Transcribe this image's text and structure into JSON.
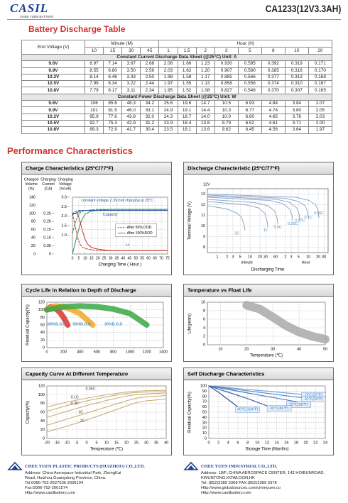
{
  "header": {
    "logo": "CASIL",
    "logo_sub": "CHEE YUEN BATTERY",
    "model": "CA1233(12V3.3AH)"
  },
  "table": {
    "title": "Battery Discharge Table",
    "corner": "End Voltage (V)",
    "group_minute": "Minute (M)",
    "group_hour": "Hour (H)",
    "columns": [
      "10",
      "15",
      "30",
      "45",
      "1",
      "1.5",
      "2",
      "3",
      "5",
      "8",
      "10",
      "20"
    ],
    "sections": [
      {
        "heading": "Constant Current Discharge Data Sheet   (@25°C)   Unit: A",
        "rows": [
          [
            "9.6V",
            "8.97",
            "7.14",
            "3.67",
            "2.68",
            "2.08",
            "1.66",
            "1.23",
            "0.930",
            "0.595",
            "0.392",
            "0.319",
            "0.171"
          ],
          [
            "9.9V",
            "8.55",
            "6.80",
            "3.50",
            "2.59",
            "2.03",
            "1.62",
            "1.20",
            "0.907",
            "0.580",
            "0.385",
            "0.316",
            "0.170"
          ],
          [
            "10.2V",
            "8.14",
            "6.48",
            "3.33",
            "2.50",
            "1.98",
            "1.58",
            "1.17",
            "0.885",
            "0.566",
            "0.377",
            "0.313",
            "0.168"
          ],
          [
            "10.5V",
            "7.99",
            "6.34",
            "3.22",
            "2.44",
            "1.97",
            "1.55",
            "1.13",
            "0.858",
            "0.556",
            "0.374",
            "0.310",
            "0.167"
          ],
          [
            "10.8V",
            "7.79",
            "6.17",
            "3.11",
            "2.34",
            "1.95",
            "1.52",
            "1.08",
            "0.827",
            "0.546",
            "0.370",
            "0.307",
            "0.165"
          ]
        ]
      },
      {
        "heading": "Constant Power Discharge Data Sheet   (@25°C)   Unit: W",
        "rows": [
          [
            "9.6V",
            "106",
            "85.6",
            "48.3",
            "34.2",
            "25.6",
            "19.6",
            "14.7",
            "10.5",
            "6.93",
            "4.84",
            "3.84",
            "2.07"
          ],
          [
            "9.9V",
            "101",
            "81.5",
            "46.0",
            "33.1",
            "24.9",
            "19.1",
            "14.4",
            "10.3",
            "6.77",
            "4.74",
            "3.80",
            "2.05"
          ],
          [
            "10.2V",
            "95.9",
            "77.6",
            "43.8",
            "32.0",
            "24.3",
            "18.7",
            "14.0",
            "10.0",
            "6.60",
            "4.65",
            "3.76",
            "2.03"
          ],
          [
            "10.5V",
            "92.7",
            "75.3",
            "42.9",
            "31.2",
            "23.9",
            "18.4",
            "13.8",
            "9.79",
            "6.52",
            "4.61",
            "3.71",
            "2.00"
          ],
          [
            "10.8V",
            "89.3",
            "72.9",
            "41.7",
            "30.4",
            "23.5",
            "18.1",
            "13.6",
            "9.62",
            "6.45",
            "4.56",
            "3.64",
            "1.97"
          ]
        ]
      }
    ]
  },
  "performance_title": "Performance Characteristics",
  "chart_data": [
    {
      "type": "line",
      "title": "Charge Characteristics (25ºC/77ºF)",
      "ylabel": [
        "Charged",
        "Volume",
        "(%)"
      ],
      "y2label": [
        "Charging",
        "Current",
        "(CA)"
      ],
      "y3label": [
        "Charging",
        "Voltage",
        "(V/cell)"
      ],
      "xlabel": "Charging Time ( Hour )",
      "xlim": [
        0,
        75
      ],
      "xticks": [
        0,
        5,
        10,
        15,
        20,
        25,
        30,
        35,
        40,
        45,
        50,
        55,
        60,
        65,
        70,
        75
      ],
      "ylim": [
        0,
        140
      ],
      "yticks": [
        0,
        20,
        40,
        60,
        80,
        100,
        120,
        140
      ],
      "y2lim": [
        0,
        0.35
      ],
      "y2ticks": [
        0,
        0.05,
        {
          "value": 0.1,
          "label": "0.10"
        },
        0.15,
        {
          "value": 0.2,
          "label": "0.20"
        },
        0.25
      ],
      "y3lim": [
        0,
        3.0
      ],
      "y3ticks": [
        {
          "value": 1.0,
          "label": "1.0"
        },
        1.5,
        {
          "value": 2.0,
          "label": "2.0"
        },
        2.5,
        {
          "value": 3.0,
          "label": "3.0"
        }
      ],
      "grid": true,
      "series": [
        {
          "color": "#2e8b57",
          "x": [
            0,
            2,
            4,
            6,
            8,
            10,
            14,
            20,
            30,
            50,
            75
          ],
          "values": [
            0,
            25,
            50,
            72,
            88,
            98,
            105,
            108,
            110,
            110,
            110
          ]
        },
        {
          "color": "#2e8b57",
          "dash": true,
          "x": [
            0,
            2,
            4,
            6,
            8,
            12,
            20,
            40,
            75
          ],
          "values": [
            50,
            75,
            92,
            102,
            106,
            108,
            110,
            110,
            110
          ]
        },
        {
          "color": "#c0392b",
          "axis": "y2",
          "x": [
            0,
            4,
            6,
            8,
            10,
            12,
            15,
            20,
            30,
            75
          ],
          "values": [
            0.25,
            0.25,
            0.2,
            0.14,
            0.09,
            0.06,
            0.04,
            0.03,
            0.02,
            0.02
          ]
        },
        {
          "color": "#c0392b",
          "axis": "y2",
          "dash": true,
          "x": [
            0,
            2,
            4,
            6,
            8,
            12,
            20,
            75
          ],
          "values": [
            0.25,
            0.18,
            0.1,
            0.06,
            0.04,
            0.03,
            0.02,
            0.02
          ]
        },
        {
          "color": "#1f4e9c",
          "axis": "y3",
          "x": [
            0,
            1,
            4,
            6,
            8,
            12,
            20,
            75
          ],
          "values": [
            2.05,
            2.12,
            2.2,
            2.27,
            2.3,
            2.3,
            2.3,
            2.3
          ]
        },
        {
          "color": "#1f4e9c",
          "axis": "y3",
          "dash": true,
          "x": [
            0,
            1,
            3,
            5,
            8,
            75
          ],
          "values": [
            2.1,
            2.18,
            2.26,
            2.3,
            2.3,
            2.3
          ]
        }
      ],
      "legend": [
        {
          "name": "After 50% DOD",
          "dash": true
        },
        {
          "name": "After 100%DOD"
        }
      ],
      "annotations": [
        "constant voltage 2.3V/cell charging at 25°C",
        "Capacity",
        "I-t"
      ]
    },
    {
      "type": "line",
      "title": "Discharge Characteristic (25ºC/77ºF)",
      "ylabel": "Terminal Voltage (V)",
      "ytop_label": "12V",
      "xlabel": "Discharging Time",
      "xunit_labels": [
        "minute",
        "Hour"
      ],
      "xscale": "log",
      "xlim": [
        0.5,
        2400
      ],
      "xticks": [
        1,
        2,
        3,
        5,
        10,
        20,
        30,
        60,
        {
          "value": 120,
          "label": "2"
        },
        {
          "value": 180,
          "label": "3"
        },
        {
          "value": 300,
          "label": "5"
        },
        {
          "value": 600,
          "label": "10"
        },
        {
          "value": 1200,
          "label": "20"
        },
        {
          "value": 1800,
          "label": "30"
        }
      ],
      "ylim": [
        7.5,
        13.5
      ],
      "yticks": [
        8,
        9,
        10,
        11,
        12,
        13
      ],
      "grid": true,
      "series": [
        {
          "color": "#8fa9c9",
          "x": [
            0.5,
            2,
            4,
            5.5,
            6.5,
            7
          ],
          "values": [
            11.9,
            11.6,
            11.2,
            10.8,
            10.2,
            9.6
          ]
        },
        {
          "color": "#8fa9c9",
          "x": [
            0.5,
            7,
            18,
            28,
            33,
            35
          ],
          "values": [
            12.3,
            12.0,
            11.7,
            11.2,
            10.5,
            9.9
          ]
        },
        {
          "color": "#8fa9c9",
          "x": [
            0.5,
            14,
            35,
            56,
            66,
            70
          ],
          "values": [
            12.5,
            12.2,
            11.9,
            11.4,
            10.8,
            10.2
          ]
        },
        {
          "color": "#8fa9c9",
          "x": [
            0.5,
            40,
            100,
            160,
            190,
            200
          ],
          "values": [
            12.7,
            12.4,
            12.1,
            11.6,
            11.0,
            10.5
          ]
        },
        {
          "color": "#8fa9c9",
          "x": [
            0.5,
            66,
            165,
            264,
            313,
            330
          ],
          "values": [
            12.8,
            12.5,
            12.2,
            11.7,
            11.1,
            10.5
          ]
        },
        {
          "color": "#8fa9c9",
          "x": [
            0.5,
            120,
            300,
            480,
            570,
            600
          ],
          "values": [
            12.9,
            12.6,
            12.3,
            11.9,
            11.3,
            10.8
          ]
        },
        {
          "color": "#8fa9c9",
          "x": [
            0.5,
            250,
            625,
            1000,
            1190,
            1250
          ],
          "values": [
            13.0,
            12.7,
            12.4,
            12.0,
            11.4,
            10.8
          ]
        }
      ],
      "annotations": [
        "3C",
        "1C",
        "0.6C",
        "0.25C",
        "0.17C",
        "0.1C",
        "0.05C"
      ]
    },
    {
      "type": "line",
      "title": "Cycle Life in Relation to Depth of Discharge",
      "ylabel": "Residual Capacity(%)",
      "xlim": [
        0,
        1400
      ],
      "xticks": [
        0,
        200,
        400,
        600,
        800,
        1000,
        1200,
        1400
      ],
      "ylim": [
        0,
        120
      ],
      "yticks": [
        0,
        20,
        40,
        60,
        80,
        100,
        120
      ],
      "grid": true,
      "series": [
        {
          "color": "#e0322b",
          "x": [
            0,
            50,
            100,
            150,
            200,
            250
          ],
          "values": [
            100,
            108,
            104,
            95,
            80,
            60
          ]
        },
        {
          "color": "#f5a623",
          "x": [
            0,
            100,
            200,
            300,
            400,
            500,
            550
          ],
          "values": [
            100,
            110,
            108,
            100,
            90,
            70,
            60
          ]
        },
        {
          "color": "#3aa845",
          "x": [
            0,
            200,
            400,
            600,
            800,
            1000,
            1100,
            1200
          ],
          "values": [
            100,
            108,
            110,
            108,
            102,
            90,
            75,
            60
          ]
        }
      ],
      "annotations": [
        "100%D.O.D",
        "50%D.O.D",
        "30%D.O.D"
      ]
    },
    {
      "type": "line",
      "title": "Temperature vs Float Life",
      "ylabel": "Life(years)",
      "xlabel": "Temperature (℃)",
      "xlim": [
        5,
        50
      ],
      "xticks": [
        10,
        20,
        30,
        40,
        50
      ],
      "ylim": [
        0,
        10
      ],
      "yticks": [
        0,
        2,
        4,
        6,
        8,
        10
      ],
      "grid": true,
      "series": [
        {
          "color": "#a9a9a9",
          "x": [
            20,
            25,
            30,
            35,
            40,
            45,
            50
          ],
          "values": [
            9.3,
            8.4,
            6.5,
            4.5,
            3.0,
            2.0,
            1.3
          ]
        }
      ],
      "annotations": []
    },
    {
      "type": "line",
      "title": "Capacity Curve At Different Temperature",
      "ylabel": "Capacity(%)",
      "xlabel": "Temperature (℃)",
      "xlim": [
        -20,
        40
      ],
      "xticks": [
        -20,
        -15,
        -10,
        -5,
        0,
        5,
        10,
        15,
        20,
        25,
        30,
        35,
        40
      ],
      "ylim": [
        0,
        120
      ],
      "yticks": [
        0,
        20,
        40,
        60,
        80,
        100,
        120
      ],
      "grid": true,
      "series": [
        {
          "color": "#c8a96e",
          "x": [
            -20,
            -10,
            0,
            10,
            20,
            25,
            30,
            40
          ],
          "values": [
            72,
            83,
            92,
            100,
            106,
            108,
            109,
            110
          ]
        },
        {
          "color": "#c8a96e",
          "x": [
            -20,
            -10,
            0,
            10,
            20,
            25,
            30,
            40
          ],
          "values": [
            62,
            75,
            86,
            95,
            103,
            105,
            106,
            107
          ]
        },
        {
          "color": "#c8a96e",
          "x": [
            -20,
            -10,
            0,
            10,
            20,
            25,
            30,
            40
          ],
          "values": [
            48,
            62,
            75,
            87,
            97,
            100,
            102,
            104
          ]
        },
        {
          "color": "#c8a96e",
          "x": [
            -20,
            -10,
            0,
            10,
            20,
            25,
            30,
            40
          ],
          "values": [
            30,
            44,
            58,
            72,
            86,
            92,
            95,
            98
          ]
        },
        {
          "color": "#c8a96e",
          "x": [
            -20,
            -10,
            0,
            10,
            20,
            25,
            30,
            40
          ],
          "values": [
            15,
            28,
            42,
            58,
            74,
            82,
            86,
            90
          ]
        }
      ],
      "annotations": [
        "0.05C",
        "0.1C",
        "0.3C",
        "1C",
        "2C"
      ]
    },
    {
      "type": "line",
      "title": "Self Discharge Characteristics",
      "ylabel": "Residual Capacity(%)",
      "xlabel": "Storage Time (Months)",
      "xlim": [
        0,
        24
      ],
      "xticks": [
        0,
        2,
        4,
        6,
        8,
        10,
        12,
        14,
        16,
        18,
        20,
        22,
        24
      ],
      "ylim": [
        0,
        100
      ],
      "yticks": [
        0,
        10,
        20,
        30,
        40,
        50,
        60,
        70,
        80,
        90,
        100
      ],
      "grid": true,
      "series": [
        {
          "color": "#6fa8dc",
          "x": [
            0,
            6,
            12,
            18,
            24
          ],
          "values": [
            100,
            95,
            90,
            85,
            80
          ]
        },
        {
          "color": "#5b8fd0",
          "x": [
            0,
            6,
            12,
            18,
            24
          ],
          "values": [
            100,
            93,
            86,
            79,
            72
          ]
        },
        {
          "color": "#4a7bc0",
          "x": [
            0,
            6,
            12,
            18,
            21
          ],
          "values": [
            100,
            90,
            80,
            70,
            64
          ]
        },
        {
          "color": "#3d68a8",
          "x": [
            0,
            4,
            8,
            12
          ],
          "values": [
            100,
            88,
            76,
            62
          ]
        },
        {
          "color": "#2f5590",
          "x": [
            0,
            2,
            4,
            6
          ],
          "values": [
            100,
            88,
            74,
            60
          ]
        }
      ],
      "annotations": [
        "0℃(32℉)",
        "10℃(50℉)",
        "20℃(68℉)",
        "30℃(86℉)",
        "40℃(104℉)"
      ]
    }
  ],
  "footer": {
    "companies": [
      {
        "name": "CHEE YUEN PLASTIC PRODUCTS (HUIZHOU) CO.,LTD.",
        "lines": [
          "Address: China Aerospace Industrial Park, ZhongKai",
          "Road, Huizhou,Guangdong Province, China.",
          "Tel:0086-752-2627636   2606104",
          "Fax:0086-752-2601574",
          "Http://www.casilbattery.com"
        ]
      },
      {
        "name": "CHEE YUEN INDUSTRIAL CO.,LTD.",
        "lines": [
          "Address: 18/F.,CHINA AEROSPACE CENTER, 143 HOIBUNROAD,",
          "KWUNTONG,KOWLOON,HK",
          "Tel: (852)2389 3368    FAX:(852)2389 3378",
          "Http://www.globalsources.com/cheeyuen.co",
          "Http://www.casilbattery.com"
        ]
      }
    ]
  }
}
